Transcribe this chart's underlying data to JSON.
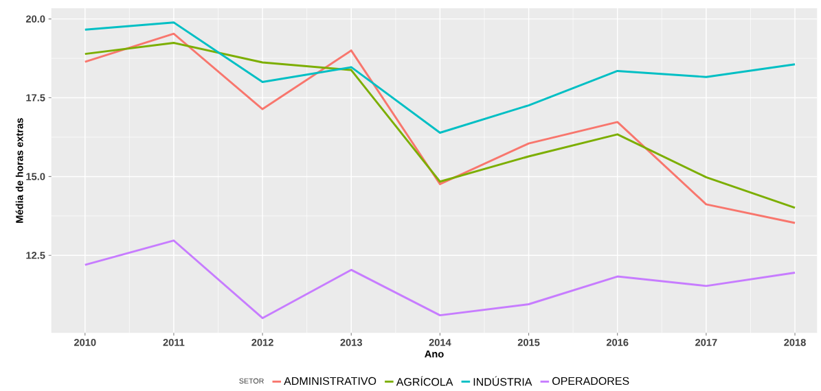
{
  "chart_data": {
    "type": "line",
    "xlabel": "Ano",
    "ylabel": "Média de horas extras",
    "legend_title": "SETOR",
    "x": [
      2010,
      2011,
      2012,
      2013,
      2014,
      2015,
      2016,
      2017,
      2018
    ],
    "series": [
      {
        "name": "ADMINISTRATIVO",
        "color": "#f8766d",
        "values": [
          18.64,
          19.53,
          17.14,
          19.0,
          14.76,
          16.05,
          16.73,
          14.12,
          13.53
        ]
      },
      {
        "name": "AGRÍCOLA",
        "color": "#7cae00",
        "values": [
          18.89,
          19.24,
          18.62,
          18.38,
          14.84,
          15.64,
          16.34,
          14.98,
          14.01
        ]
      },
      {
        "name": "INDÚSTRIA",
        "color": "#00bfc4",
        "values": [
          19.66,
          19.89,
          18.0,
          18.47,
          16.39,
          17.26,
          18.35,
          18.16,
          18.56
        ]
      },
      {
        "name": "OPERADORES",
        "color": "#c77cff",
        "values": [
          12.2,
          12.97,
          10.51,
          12.04,
          10.6,
          10.95,
          11.83,
          11.53,
          11.95
        ]
      }
    ],
    "xlim": [
      2009.62,
      2018.25
    ],
    "ylim": [
      10.04,
      20.34
    ],
    "xticks": [
      2010,
      2011,
      2012,
      2013,
      2014,
      2015,
      2016,
      2017,
      2018
    ],
    "yticks": [
      {
        "value": 12.5,
        "label": "12.5"
      },
      {
        "value": 15,
        "label": "15.0"
      },
      {
        "value": 17.5,
        "label": "17.5"
      },
      {
        "value": 20,
        "label": "20.0"
      }
    ],
    "grid": true,
    "legend": "bottom"
  }
}
